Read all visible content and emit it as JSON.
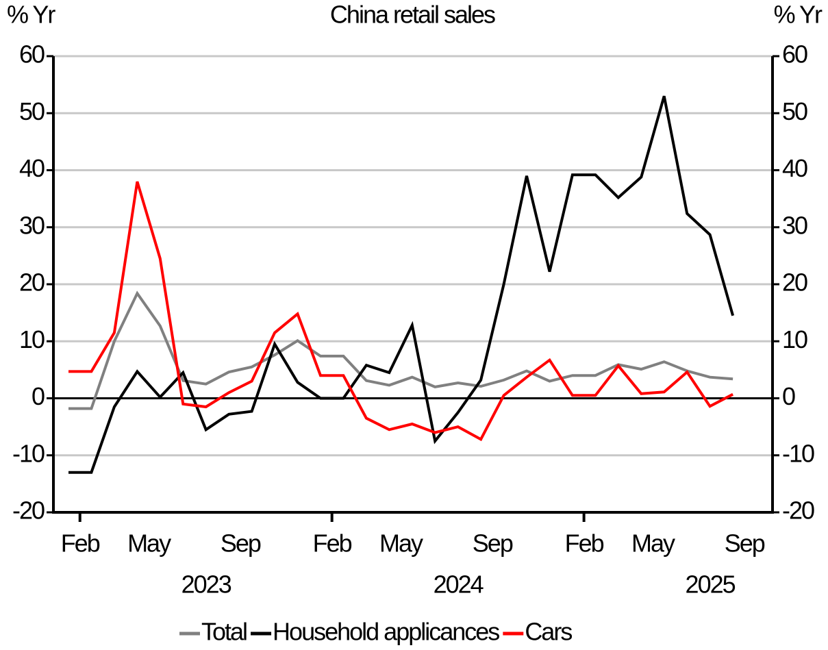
{
  "chart_data": {
    "type": "line",
    "title": "China retail sales",
    "y_label": "% Yr",
    "y2_label": "% Yr",
    "categories": [
      null,
      "Feb",
      null,
      null,
      "May",
      null,
      null,
      null,
      "Sep",
      null,
      null,
      null,
      "Feb",
      null,
      null,
      "May",
      null,
      null,
      null,
      "Sep",
      null,
      null,
      null,
      "Feb",
      null,
      null,
      "May",
      null,
      null,
      null,
      "Sep"
    ],
    "years": [
      "2023",
      "2024",
      "2025"
    ],
    "series": [
      {
        "name": "Total",
        "color": "#808080",
        "values": [
          -1.8,
          -1.8,
          10,
          18.4,
          12.7,
          3.1,
          2.5,
          4.6,
          5.5,
          7.6,
          10.1,
          7.4,
          7.4,
          3.1,
          2.3,
          3.7,
          2.0,
          2.7,
          2.1,
          3.2,
          4.8,
          3.0,
          4.0,
          4.0,
          5.9,
          5.1,
          6.4,
          4.8,
          3.7,
          3.4,
          null
        ]
      },
      {
        "name": "Household applicances",
        "color": "#000000",
        "values": [
          -13,
          -13,
          -1.5,
          4.7,
          0.2,
          4.5,
          -5.5,
          -2.8,
          -2.3,
          9.5,
          2.8,
          0,
          0,
          5.8,
          4.5,
          12.8,
          -7.5,
          -2.5,
          3.2,
          20,
          39,
          22.2,
          39.2,
          39.2,
          35.2,
          38.8,
          53,
          32.4,
          28.7,
          14.5,
          null
        ]
      },
      {
        "name": "Cars",
        "color": "#ff0000",
        "values": [
          4.7,
          4.7,
          11.5,
          38,
          24.5,
          -1,
          -1.5,
          1,
          3,
          11.5,
          14.8,
          4,
          4,
          -3.5,
          -5.5,
          -4.5,
          -6,
          -5,
          -7.2,
          0.5,
          3.7,
          6.7,
          0.5,
          0.5,
          5.7,
          0.8,
          1.1,
          4.6,
          -1.4,
          0.7,
          null
        ]
      }
    ],
    "ylim": [
      -20,
      60
    ],
    "yticks": [
      -20,
      -10,
      0,
      10,
      20,
      30,
      40,
      50,
      60
    ],
    "y2lim": [
      -20,
      60
    ],
    "y2ticks": [
      -20,
      -10,
      0,
      10,
      20,
      30,
      40,
      50,
      60
    ],
    "grid": true,
    "legend": "bottom"
  }
}
